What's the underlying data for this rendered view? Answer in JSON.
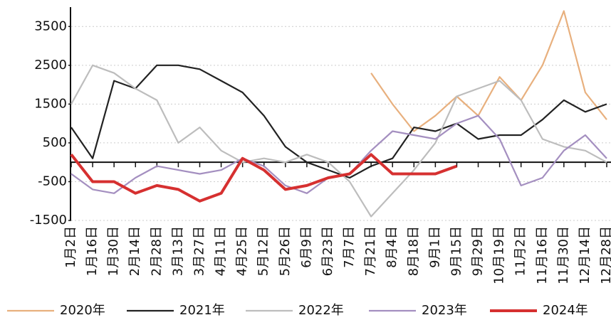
{
  "chart_data": {
    "type": "line",
    "categories": [
      "1月2日",
      "1月16日",
      "1月30日",
      "2月14日",
      "2月28日",
      "3月13日",
      "3月27日",
      "4月11日",
      "4月25日",
      "5月12日",
      "5月26日",
      "6月9日",
      "6月23日",
      "7月7日",
      "7月21日",
      "8月4日",
      "8月18日",
      "9月1日",
      "9月15日",
      "9月29日",
      "10月19日",
      "11月2日",
      "11月16日",
      "11月30日",
      "12月14日",
      "12月28日"
    ],
    "series": [
      {
        "name": "2020年",
        "color": "#e8b07e",
        "values": [
          null,
          null,
          null,
          null,
          null,
          null,
          null,
          null,
          null,
          null,
          null,
          null,
          null,
          null,
          2300,
          1500,
          800,
          1200,
          1700,
          1200,
          2200,
          1600,
          2500,
          3900,
          1800,
          1100
        ]
      },
      {
        "name": "2021年",
        "color": "#222222",
        "values": [
          900,
          100,
          2100,
          1900,
          2500,
          2500,
          2400,
          2100,
          1800,
          1200,
          400,
          0,
          -200,
          -400,
          -100,
          100,
          900,
          800,
          1000,
          600,
          700,
          700,
          1100,
          1600,
          1300,
          1500
        ]
      },
      {
        "name": "2022年",
        "color": "#bdbdbd",
        "values": [
          1500,
          2500,
          2300,
          1900,
          1600,
          500,
          900,
          300,
          0,
          100,
          0,
          200,
          0,
          -500,
          -1400,
          -800,
          -200,
          500,
          1700,
          1900,
          2100,
          1600,
          600,
          400,
          300,
          0
        ]
      },
      {
        "name": "2023年",
        "color": "#a48fc0",
        "values": [
          -300,
          -700,
          -800,
          -400,
          -100,
          -200,
          -300,
          -200,
          100,
          -100,
          -600,
          -800,
          -400,
          -300,
          300,
          800,
          700,
          600,
          1000,
          1200,
          600,
          -600,
          -400,
          300,
          700,
          100
        ]
      },
      {
        "name": "2024年",
        "color": "#d63030",
        "values": [
          200,
          -500,
          -500,
          -800,
          -600,
          -700,
          -1000,
          -800,
          100,
          -200,
          -700,
          -600,
          -400,
          -300,
          200,
          -300,
          -300,
          -300,
          -100,
          null,
          null,
          null,
          null,
          null,
          null,
          null
        ]
      }
    ],
    "ylim": [
      -1500,
      4000
    ],
    "yticks": [
      -1500,
      -500,
      500,
      1500,
      2500,
      3500
    ],
    "grid": true,
    "legend": "bottom"
  }
}
